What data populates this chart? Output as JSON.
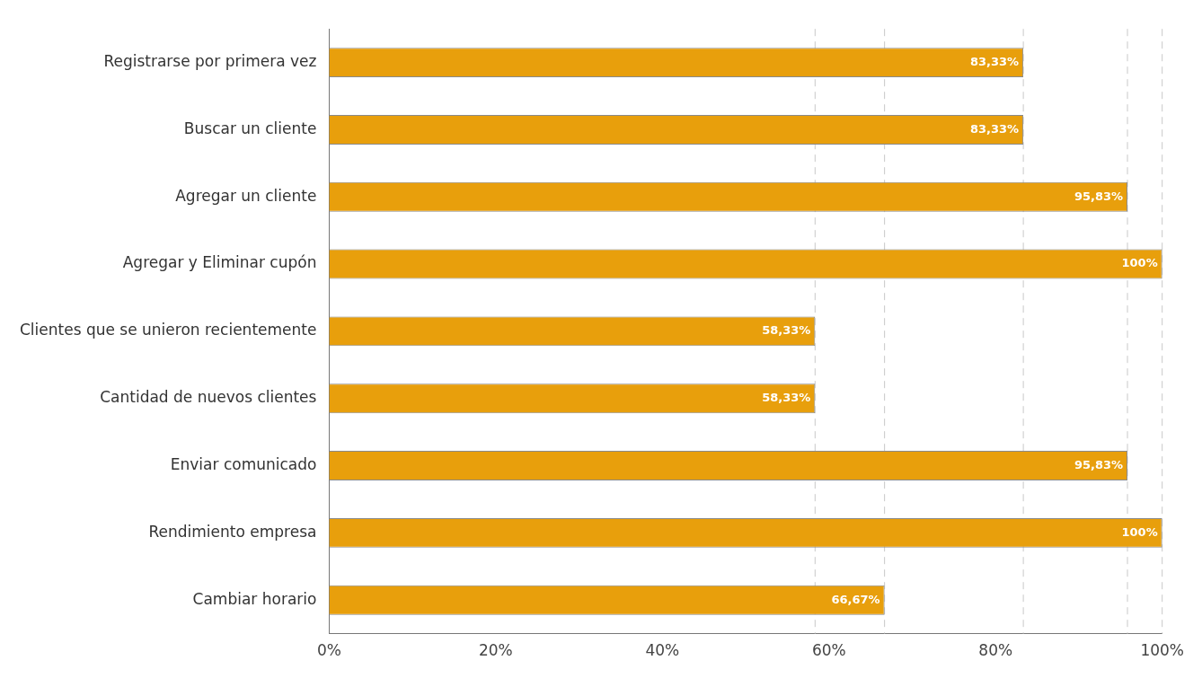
{
  "chart_data": {
    "type": "bar",
    "orientation": "horizontal",
    "categories": [
      "Registrarse por primera vez",
      "Buscar un cliente",
      "Agregar un cliente",
      "Agregar y Eliminar cupón",
      "Clientes que se unieron recientemente",
      "Cantidad de nuevos clientes",
      "Enviar comunicado",
      "Rendimiento empresa",
      "Cambiar horario"
    ],
    "values": [
      83.33,
      83.33,
      95.83,
      100,
      58.33,
      58.33,
      95.83,
      100,
      66.67
    ],
    "value_labels": [
      "83,33%",
      "83,33%",
      "95,83%",
      "100%",
      "58,33%",
      "58,33%",
      "95,83%",
      "100%",
      "66,67%"
    ],
    "color": "#e89f0c",
    "xlim": [
      0,
      100
    ],
    "xticks": [
      {
        "value": 0,
        "label": "0%"
      },
      {
        "value": 20,
        "label": "20%"
      },
      {
        "value": 40,
        "label": "40%"
      },
      {
        "value": 60,
        "label": "60%"
      },
      {
        "value": 80,
        "label": "80%"
      },
      {
        "value": 100,
        "label": "100%"
      }
    ],
    "ref_lines": [
      {
        "axis": "x",
        "value": 58.33,
        "color": "#c8c8c8",
        "line_style": "dashed"
      },
      {
        "axis": "x",
        "value": 66.67,
        "color": "#c8c8c8",
        "line_style": "dashed"
      },
      {
        "axis": "x",
        "value": 83.33,
        "color": "#c8c8c8",
        "line_style": "dashed"
      },
      {
        "axis": "x",
        "value": 95.83,
        "color": "#c8c8c8",
        "line_style": "dashed"
      },
      {
        "axis": "x",
        "value": 100,
        "color": "#c8c8c8",
        "line_style": "dashed"
      }
    ],
    "grid": false,
    "legend": false
  }
}
